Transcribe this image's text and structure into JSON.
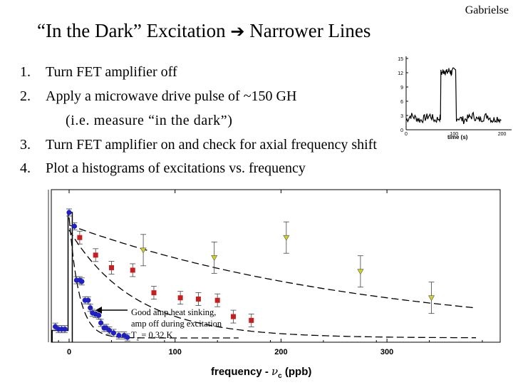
{
  "header": {
    "author": "Gabrielse",
    "title_left": "“In the Dark” Excitation",
    "arrow_icon": "right-arrow-icon",
    "title_right": "Narrower Lines"
  },
  "steps": [
    {
      "num": "1.",
      "text": "Turn FET amplifier off"
    },
    {
      "num": "2.",
      "text": "Apply a microwave drive pulse of ~150 GH"
    },
    {
      "num": "3.",
      "text": "Turn FET amplifier on and check for axial frequency shift"
    },
    {
      "num": "4.",
      "text": "Plot a histograms of excitations vs. frequency"
    }
  ],
  "step2_note": "(i.e. measure “in the dark”)",
  "chart_data": [
    {
      "type": "line",
      "x": [
        0,
        10,
        20,
        30,
        40,
        50,
        60,
        70,
        75,
        80,
        85,
        90,
        95,
        100,
        110,
        120,
        130,
        140,
        150,
        160,
        170,
        180,
        190,
        200
      ],
      "y": [
        2,
        3,
        2.5,
        2,
        2.5,
        3,
        2,
        2.5,
        12,
        12.5,
        12,
        12.5,
        12,
        12.5,
        2.5,
        2,
        2.5,
        3,
        2,
        2.5,
        3,
        2,
        2.5,
        2
      ],
      "yticks": [
        "15",
        "12",
        "9",
        "6",
        "3",
        "0"
      ],
      "xticks": [
        "0",
        "100",
        "200"
      ],
      "xlabel": "time (s)"
    },
    {
      "type": "scatter",
      "xticks": [
        "0",
        "100",
        "200",
        "300"
      ],
      "xlabel_main": "frequency - ",
      "xlabel_var": "ν",
      "xlabel_sub": "c",
      "xlabel_unit": " (ppb)",
      "annotation": [
        "Good amp heat sinking,",
        "amp off during excitation",
        "T",
        "z",
        " = 0.32 K"
      ],
      "series": [
        {
          "marker": "circle",
          "color": "#1f1fc8",
          "x": [
            -13,
            -10,
            -7,
            -4,
            0,
            5,
            7,
            10,
            12,
            15,
            18,
            20,
            22,
            25,
            28,
            30,
            33,
            35,
            38,
            42,
            47,
            52,
            55
          ],
          "y": [
            9,
            7,
            7,
            7,
            100,
            89,
            46,
            46,
            45,
            30,
            30,
            24,
            20,
            19,
            18,
            12,
            8,
            8,
            6,
            4,
            2,
            2,
            0.5
          ]
        },
        {
          "marker": "square",
          "color": "#c81e1e",
          "x": [
            10,
            25,
            40,
            60,
            80,
            105,
            122,
            140,
            155,
            172
          ],
          "y": [
            80,
            66,
            56,
            54,
            36,
            32,
            31,
            30,
            17,
            14
          ]
        },
        {
          "marker": "triangle",
          "color": "#d2d21e",
          "x": [
            70,
            137,
            205,
            275,
            342
          ],
          "y": [
            70,
            64,
            80,
            53,
            32
          ]
        }
      ]
    }
  ]
}
